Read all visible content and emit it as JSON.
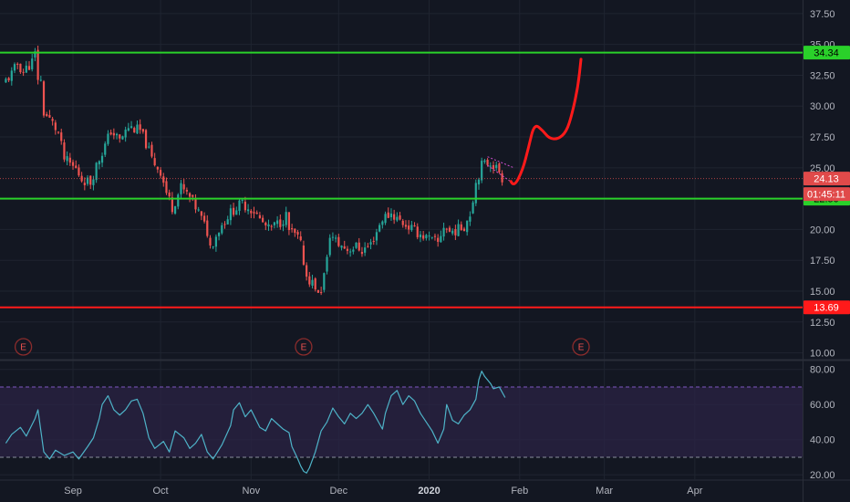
{
  "colors": {
    "background": "#131722",
    "grid": "#1f2430",
    "axis_text": "#b2b5be",
    "up": "#26a69a",
    "down": "#ef5350",
    "support_line": "#2ad12a",
    "resistance_line": "#ff1a1a",
    "rsi_line": "#4eb3c8",
    "rsi_band": "#2b2344",
    "rsi_band_line": "#7e57c2",
    "projection": "#ff1a1a",
    "pennant": "#d04fd0"
  },
  "chart_data": [
    {
      "type": "candlestick",
      "panel": "price",
      "y_scale": "linear",
      "ylim": [
        9.6,
        38.6
      ],
      "y_ticks": [
        "10.00",
        "12.50",
        "15.00",
        "17.50",
        "20.00",
        "22.50",
        "25.00",
        "27.50",
        "30.00",
        "32.50",
        "35.00",
        "37.50"
      ],
      "x_ticks": [
        {
          "label": "Sep",
          "date": "2019-09-01",
          "bold": false
        },
        {
          "label": "Oct",
          "date": "2019-10-01",
          "bold": false
        },
        {
          "label": "Nov",
          "date": "2019-11-01",
          "bold": false
        },
        {
          "label": "Dec",
          "date": "2019-12-01",
          "bold": false
        },
        {
          "label": "2020",
          "date": "2020-01-01",
          "bold": true
        },
        {
          "label": "Feb",
          "date": "2020-02-01",
          "bold": false
        },
        {
          "label": "Mar",
          "date": "2020-03-01",
          "bold": false
        },
        {
          "label": "Apr",
          "date": "2020-04-01",
          "bold": false
        }
      ],
      "grid": true,
      "price_path": [
        [
          "2019-08-09",
          31.8
        ],
        [
          "2019-08-12",
          32.6
        ],
        [
          "2019-08-14",
          33.4
        ],
        [
          "2019-08-16",
          32.8
        ],
        [
          "2019-08-19",
          33.6
        ],
        [
          "2019-08-20",
          34.2
        ],
        [
          "2019-08-21",
          32.3
        ],
        [
          "2019-08-22",
          32.0
        ],
        [
          "2019-08-23",
          29.5
        ],
        [
          "2019-08-26",
          28.6
        ],
        [
          "2019-08-28",
          27.8
        ],
        [
          "2019-08-30",
          25.7
        ],
        [
          "2019-09-03",
          24.9
        ],
        [
          "2019-09-05",
          24.1
        ],
        [
          "2019-09-08",
          23.8
        ],
        [
          "2019-09-10",
          25.2
        ],
        [
          "2019-09-13",
          26.8
        ],
        [
          "2019-09-15",
          28.0
        ],
        [
          "2019-09-18",
          27.2
        ],
        [
          "2019-09-21",
          28.3
        ],
        [
          "2019-09-25",
          28.0
        ],
        [
          "2019-09-27",
          27.0
        ],
        [
          "2019-09-29",
          25.7
        ],
        [
          "2019-10-02",
          24.7
        ],
        [
          "2019-10-04",
          23.0
        ],
        [
          "2019-10-06",
          21.8
        ],
        [
          "2019-10-09",
          23.4
        ],
        [
          "2019-10-12",
          22.6
        ],
        [
          "2019-10-15",
          21.4
        ],
        [
          "2019-10-18",
          19.8
        ],
        [
          "2019-10-19",
          18.6
        ],
        [
          "2019-10-22",
          20.0
        ],
        [
          "2019-10-25",
          21.1
        ],
        [
          "2019-10-27",
          21.6
        ],
        [
          "2019-10-30",
          22.1
        ],
        [
          "2019-11-03",
          21.5
        ],
        [
          "2019-11-05",
          20.8
        ],
        [
          "2019-11-08",
          20.0
        ],
        [
          "2019-11-12",
          20.6
        ],
        [
          "2019-11-14",
          21.1
        ],
        [
          "2019-11-15",
          19.9
        ],
        [
          "2019-11-18",
          19.3
        ],
        [
          "2019-11-19",
          18.7
        ],
        [
          "2019-11-21",
          16.2
        ],
        [
          "2019-11-24",
          15.4
        ],
        [
          "2019-11-25",
          14.6
        ],
        [
          "2019-11-26",
          15.1
        ],
        [
          "2019-11-28",
          17.5
        ],
        [
          "2019-11-29",
          19.6
        ],
        [
          "2019-12-02",
          18.8
        ],
        [
          "2019-12-05",
          18.4
        ],
        [
          "2019-12-08",
          18.6
        ],
        [
          "2019-12-10",
          18.3
        ],
        [
          "2019-12-13",
          18.8
        ],
        [
          "2019-12-17",
          20.9
        ],
        [
          "2019-12-20",
          21.3
        ],
        [
          "2019-12-23",
          20.7
        ],
        [
          "2019-12-28",
          19.9
        ],
        [
          "2020-01-02",
          19.2
        ],
        [
          "2020-01-05",
          18.9
        ],
        [
          "2020-01-07",
          20.3
        ],
        [
          "2020-01-09",
          19.8
        ],
        [
          "2020-01-12",
          20.0
        ],
        [
          "2020-01-14",
          20.3
        ],
        [
          "2020-01-16",
          21.3
        ],
        [
          "2020-01-18",
          23.8
        ],
        [
          "2020-01-20",
          25.2
        ],
        [
          "2020-01-23",
          25.5
        ],
        [
          "2020-01-26",
          24.7
        ],
        [
          "2020-01-27",
          24.2
        ]
      ],
      "horizontal_levels": [
        {
          "value": 34.34,
          "label": "34.34",
          "color": "#2ad12a"
        },
        {
          "value": 22.5,
          "label": "22.50",
          "color": "#2ad12a"
        },
        {
          "value": 13.69,
          "label": "13.69",
          "color": "#ff1a1a"
        }
      ],
      "last_price": {
        "value": 24.13,
        "label": "24.13",
        "countdown": "01:45:11"
      },
      "earnings_markers": [
        {
          "date": "2019-08-15",
          "label": "E"
        },
        {
          "date": "2019-11-19",
          "label": "E"
        },
        {
          "date": "2020-02-22",
          "label": "E"
        }
      ],
      "projection_path": [
        [
          "2020-01-29",
          23.9
        ],
        [
          "2020-01-30",
          23.4
        ],
        [
          "2020-02-02",
          24.8
        ],
        [
          "2020-02-04",
          26.6
        ],
        [
          "2020-02-06",
          28.6
        ],
        [
          "2020-02-09",
          28.0
        ],
        [
          "2020-02-11",
          27.4
        ],
        [
          "2020-02-14",
          27.3
        ],
        [
          "2020-02-17",
          27.9
        ],
        [
          "2020-02-19",
          29.4
        ],
        [
          "2020-02-21",
          31.6
        ],
        [
          "2020-02-22",
          33.8
        ]
      ],
      "pennant": [
        [
          "2020-01-21",
          25.9
        ],
        [
          "2020-01-30",
          25.0
        ],
        [
          "2020-01-21",
          25.2
        ],
        [
          "2020-01-30",
          23.7
        ]
      ]
    },
    {
      "type": "line",
      "panel": "rsi",
      "y_scale": "linear",
      "ylim": [
        17.5,
        84
      ],
      "y_ticks": [
        "20.00",
        "40.00",
        "60.00",
        "80.00"
      ],
      "band": [
        30,
        70
      ],
      "grid": true,
      "series": [
        {
          "values": [
            [
              "2019-08-09",
              38
            ],
            [
              "2019-08-11",
              43
            ],
            [
              "2019-08-14",
              47
            ],
            [
              "2019-08-16",
              42
            ],
            [
              "2019-08-19",
              52
            ],
            [
              "2019-08-20",
              57
            ],
            [
              "2019-08-21",
              45
            ],
            [
              "2019-08-22",
              33
            ],
            [
              "2019-08-24",
              29
            ],
            [
              "2019-08-26",
              34
            ],
            [
              "2019-08-29",
              31
            ],
            [
              "2019-09-01",
              33
            ],
            [
              "2019-09-03",
              29
            ],
            [
              "2019-09-06",
              36
            ],
            [
              "2019-09-08",
              41
            ],
            [
              "2019-09-10",
              52
            ],
            [
              "2019-09-11",
              60
            ],
            [
              "2019-09-13",
              65
            ],
            [
              "2019-09-15",
              57
            ],
            [
              "2019-09-17",
              54
            ],
            [
              "2019-09-19",
              57
            ],
            [
              "2019-09-21",
              62
            ],
            [
              "2019-09-23",
              63
            ],
            [
              "2019-09-25",
              55
            ],
            [
              "2019-09-27",
              41
            ],
            [
              "2019-09-29",
              35
            ],
            [
              "2019-10-02",
              39
            ],
            [
              "2019-10-04",
              33
            ],
            [
              "2019-10-06",
              45
            ],
            [
              "2019-10-09",
              41
            ],
            [
              "2019-10-11",
              35
            ],
            [
              "2019-10-13",
              38
            ],
            [
              "2019-10-15",
              43
            ],
            [
              "2019-10-17",
              33
            ],
            [
              "2019-10-19",
              29
            ],
            [
              "2019-10-22",
              37
            ],
            [
              "2019-10-25",
              48
            ],
            [
              "2019-10-26",
              57
            ],
            [
              "2019-10-28",
              61
            ],
            [
              "2019-10-30",
              53
            ],
            [
              "2019-11-01",
              57
            ],
            [
              "2019-11-04",
              47
            ],
            [
              "2019-11-06",
              45
            ],
            [
              "2019-11-08",
              52
            ],
            [
              "2019-11-10",
              49
            ],
            [
              "2019-11-12",
              46
            ],
            [
              "2019-11-14",
              44
            ],
            [
              "2019-11-15",
              36
            ],
            [
              "2019-11-17",
              29
            ],
            [
              "2019-11-18",
              25
            ],
            [
              "2019-11-19",
              22
            ],
            [
              "2019-11-20",
              21
            ],
            [
              "2019-11-21",
              24
            ],
            [
              "2019-11-23",
              33
            ],
            [
              "2019-11-25",
              45
            ],
            [
              "2019-11-27",
              50
            ],
            [
              "2019-11-29",
              58
            ],
            [
              "2019-12-01",
              53
            ],
            [
              "2019-12-03",
              49
            ],
            [
              "2019-12-05",
              55
            ],
            [
              "2019-12-07",
              52
            ],
            [
              "2019-12-09",
              55
            ],
            [
              "2019-12-11",
              60
            ],
            [
              "2019-12-13",
              55
            ],
            [
              "2019-12-15",
              49
            ],
            [
              "2019-12-16",
              46
            ],
            [
              "2019-12-17",
              55
            ],
            [
              "2019-12-19",
              65
            ],
            [
              "2019-12-21",
              68
            ],
            [
              "2019-12-23",
              60
            ],
            [
              "2019-12-25",
              65
            ],
            [
              "2019-12-27",
              62
            ],
            [
              "2019-12-29",
              55
            ],
            [
              "2019-12-31",
              50
            ],
            [
              "2020-01-02",
              45
            ],
            [
              "2020-01-04",
              38
            ],
            [
              "2020-01-06",
              46
            ],
            [
              "2020-01-07",
              60
            ],
            [
              "2020-01-09",
              51
            ],
            [
              "2020-01-11",
              49
            ],
            [
              "2020-01-13",
              54
            ],
            [
              "2020-01-15",
              57
            ],
            [
              "2020-01-17",
              63
            ],
            [
              "2020-01-18",
              74
            ],
            [
              "2020-01-19",
              79
            ],
            [
              "2020-01-20",
              76
            ],
            [
              "2020-01-22",
              72
            ],
            [
              "2020-01-23",
              69
            ],
            [
              "2020-01-25",
              70
            ],
            [
              "2020-01-27",
              64
            ]
          ]
        }
      ]
    }
  ]
}
